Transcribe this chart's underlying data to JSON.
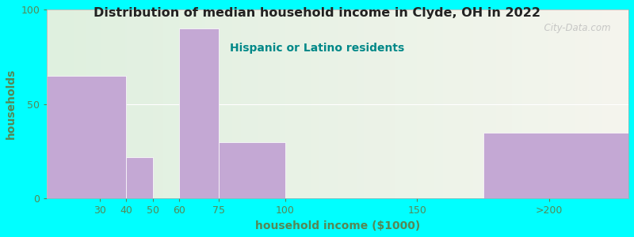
{
  "title": "Distribution of median household income in Clyde, OH in 2022",
  "subtitle": "Hispanic or Latino residents",
  "xlabel": "household income ($1000)",
  "ylabel": "households",
  "title_color": "#222222",
  "subtitle_color": "#008888",
  "label_color": "#558855",
  "tick_color": "#558855",
  "bg_outer": "#00ffff",
  "bar_color": "#c4a8d4",
  "values": [
    65,
    0,
    22,
    0,
    90,
    30,
    0,
    0,
    35
  ],
  "bar_lefts": [
    10,
    40,
    40,
    50,
    60,
    75,
    100,
    150,
    175
  ],
  "bar_rights": [
    40,
    40,
    50,
    60,
    75,
    100,
    150,
    175,
    230
  ],
  "xtick_positions": [
    30,
    40,
    50,
    60,
    75,
    100,
    150,
    200
  ],
  "xtick_labels": [
    "30",
    "40",
    "50",
    "60",
    "75",
    "100",
    "150",
    ">200"
  ],
  "xlim": [
    10,
    230
  ],
  "ylim": [
    0,
    100
  ],
  "ytick_positions": [
    0,
    50,
    100
  ],
  "ytick_labels": [
    "0",
    "50",
    "100"
  ],
  "grid_y": 50,
  "watermark": "  City-Data.com"
}
